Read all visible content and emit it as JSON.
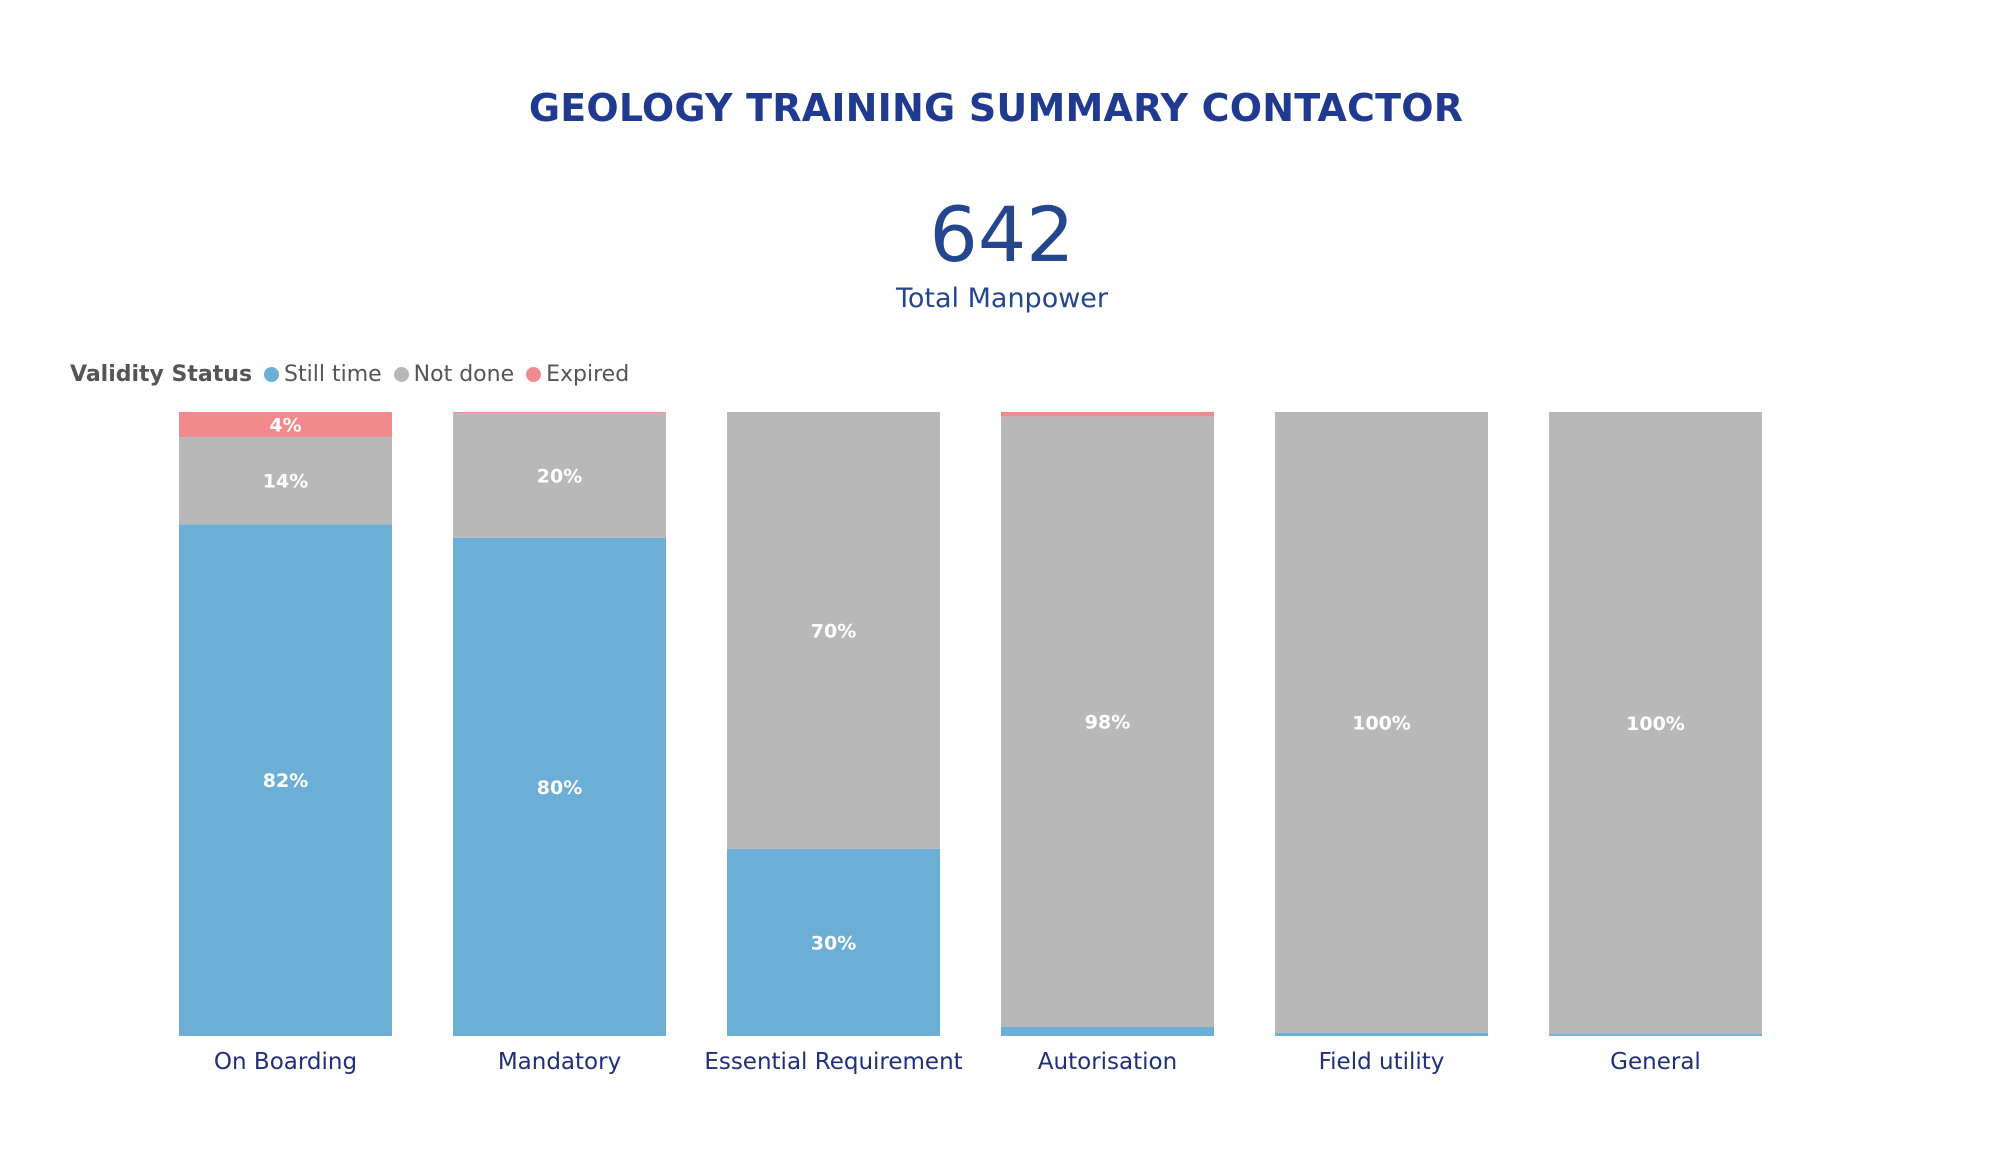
{
  "title": "GEOLOGY TRAINING SUMMARY CONTACTOR",
  "kpi": {
    "value": "642",
    "label": "Total Manpower"
  },
  "legend": {
    "title": "Validity Status",
    "items": [
      {
        "label": "Still time",
        "color": "#6baed6"
      },
      {
        "label": "Not done",
        "color": "#b8b8b8"
      },
      {
        "label": "Expired",
        "color": "#f08a8c"
      }
    ]
  },
  "chart_data": {
    "type": "bar",
    "stacked": true,
    "percent_stacked": true,
    "categories": [
      "On Boarding",
      "Mandatory",
      "Essential Requirement",
      "Autorisation",
      "Field utility",
      "General"
    ],
    "series": [
      {
        "name": "Still time",
        "color": "#6baed6",
        "values": [
          82,
          80,
          30,
          1.5,
          0.5,
          0.3
        ],
        "labels": [
          "82%",
          "80%",
          "30%",
          "",
          "",
          ""
        ]
      },
      {
        "name": "Not done",
        "color": "#b8b8b8",
        "values": [
          14,
          20,
          70,
          98,
          99.5,
          99.7
        ],
        "labels": [
          "14%",
          "20%",
          "70%",
          "98%",
          "100%",
          "100%"
        ]
      },
      {
        "name": "Expired",
        "color": "#f08a8c",
        "values": [
          4,
          0.2,
          0,
          0.7,
          0,
          0
        ],
        "labels": [
          "4%",
          "",
          "",
          "",
          "",
          ""
        ]
      }
    ],
    "ylim": [
      0,
      100
    ],
    "xlabel": "",
    "ylabel": "",
    "grid": false,
    "legend_position": "top-left"
  }
}
